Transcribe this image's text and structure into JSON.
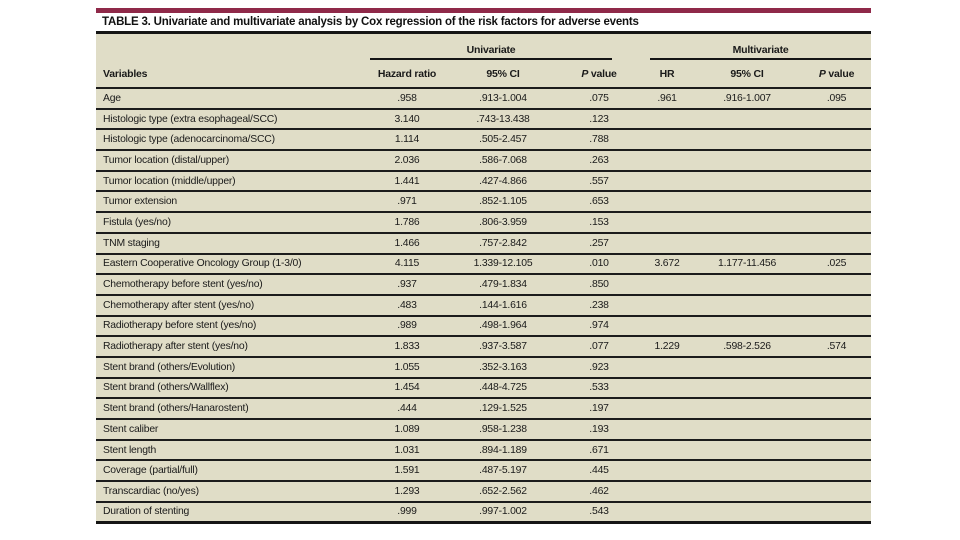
{
  "page": {
    "background": "#ffffff"
  },
  "accent": {
    "color": "#8f2949"
  },
  "table": {
    "title": "TABLE 3. Univariate and multivariate analysis by Cox regression of the risk factors for adverse events",
    "background": "#e0ddc7",
    "group_headers": {
      "univariate": "Univariate",
      "multivariate": "Multivariate"
    },
    "column_headers": {
      "variables": "Variables",
      "u_hr": "Hazard ratio",
      "u_ci": "95% CI",
      "u_p": "P value",
      "m_hr": "HR",
      "m_ci": "95% CI",
      "m_p": "P value"
    },
    "rows": [
      [
        "Age",
        ".958",
        ".913-1.004",
        ".075",
        ".961",
        ".916-1.007",
        ".095"
      ],
      [
        "Histologic type (extra esophageal/SCC)",
        "3.140",
        ".743-13.438",
        ".123",
        "",
        "",
        ""
      ],
      [
        "Histologic type (adenocarcinoma/SCC)",
        "1.114",
        ".505-2.457",
        ".788",
        "",
        "",
        ""
      ],
      [
        "Tumor location (distal/upper)",
        "2.036",
        ".586-7.068",
        ".263",
        "",
        "",
        ""
      ],
      [
        "Tumor location (middle/upper)",
        "1.441",
        ".427-4.866",
        ".557",
        "",
        "",
        ""
      ],
      [
        "Tumor extension",
        ".971",
        ".852-1.105",
        ".653",
        "",
        "",
        ""
      ],
      [
        "Fistula (yes/no)",
        "1.786",
        ".806-3.959",
        ".153",
        "",
        "",
        ""
      ],
      [
        "TNM staging",
        "1.466",
        ".757-2.842",
        ".257",
        "",
        "",
        ""
      ],
      [
        "Eastern Cooperative Oncology Group (1-3/0)",
        "4.115",
        "1.339-12.105",
        ".010",
        "3.672",
        "1.177-11.456",
        ".025"
      ],
      [
        "Chemotherapy before stent (yes/no)",
        ".937",
        ".479-1.834",
        ".850",
        "",
        "",
        ""
      ],
      [
        "Chemotherapy after stent (yes/no)",
        ".483",
        ".144-1.616",
        ".238",
        "",
        "",
        ""
      ],
      [
        "Radiotherapy before stent (yes/no)",
        ".989",
        ".498-1.964",
        ".974",
        "",
        "",
        ""
      ],
      [
        "Radiotherapy after stent (yes/no)",
        "1.833",
        ".937-3.587",
        ".077",
        "1.229",
        ".598-2.526",
        ".574"
      ],
      [
        "Stent brand (others/Evolution)",
        "1.055",
        ".352-3.163",
        ".923",
        "",
        "",
        ""
      ],
      [
        "Stent brand (others/Wallflex)",
        "1.454",
        ".448-4.725",
        ".533",
        "",
        "",
        ""
      ],
      [
        "Stent brand (others/Hanarostent)",
        ".444",
        ".129-1.525",
        ".197",
        "",
        "",
        ""
      ],
      [
        "Stent caliber",
        "1.089",
        ".958-1.238",
        ".193",
        "",
        "",
        ""
      ],
      [
        "Stent length",
        "1.031",
        ".894-1.189",
        ".671",
        "",
        "",
        ""
      ],
      [
        "Coverage (partial/full)",
        "1.591",
        ".487-5.197",
        ".445",
        "",
        "",
        ""
      ],
      [
        "Transcardiac (no/yes)",
        "1.293",
        ".652-2.562",
        ".462",
        "",
        "",
        ""
      ],
      [
        "Duration of stenting",
        ".999",
        ".997-1.002",
        ".543",
        "",
        "",
        ""
      ]
    ]
  }
}
